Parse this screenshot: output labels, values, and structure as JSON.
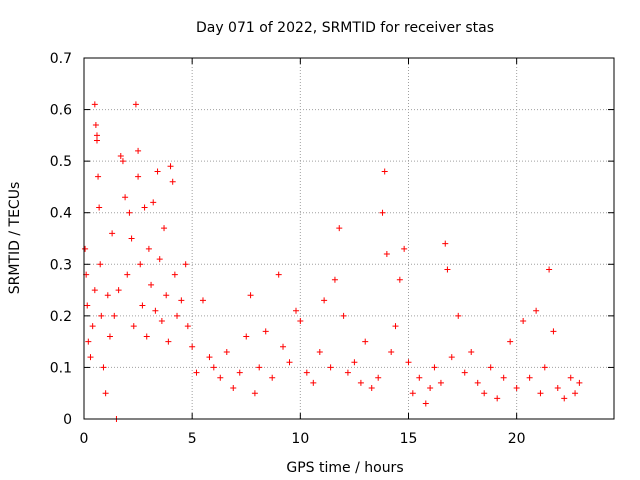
{
  "chart_data": {
    "type": "scatter",
    "title": "Day 071 of 2022, SRMTID for receiver stas",
    "xlabel": "GPS time / hours",
    "ylabel": "SRMTID / TECUs",
    "xlim": [
      0,
      24.5
    ],
    "ylim": [
      0,
      0.7
    ],
    "xticks": [
      0,
      5,
      10,
      15,
      20
    ],
    "yticks": [
      0,
      0.1,
      0.2,
      0.3,
      0.4,
      0.5,
      0.6,
      0.7
    ],
    "xtick_labels": [
      "0",
      "5",
      "10",
      "15",
      "20"
    ],
    "ytick_labels": [
      "0",
      "0.1",
      "0.2",
      "0.3",
      "0.4",
      "0.5",
      "0.6",
      "0.7"
    ],
    "grid": true,
    "marker": "plus",
    "color": "#ff0000",
    "series": [
      {
        "name": "SRMTID",
        "points": [
          [
            0.05,
            0.33
          ],
          [
            0.1,
            0.28
          ],
          [
            0.15,
            0.22
          ],
          [
            0.2,
            0.15
          ],
          [
            0.3,
            0.12
          ],
          [
            0.4,
            0.18
          ],
          [
            0.5,
            0.25
          ],
          [
            0.5,
            0.61
          ],
          [
            0.55,
            0.57
          ],
          [
            0.6,
            0.55
          ],
          [
            0.6,
            0.54
          ],
          [
            0.65,
            0.47
          ],
          [
            0.7,
            0.41
          ],
          [
            0.75,
            0.3
          ],
          [
            0.8,
            0.2
          ],
          [
            0.9,
            0.1
          ],
          [
            1.0,
            0.05
          ],
          [
            1.1,
            0.24
          ],
          [
            1.2,
            0.16
          ],
          [
            1.3,
            0.36
          ],
          [
            1.4,
            0.2
          ],
          [
            1.5,
            0.0
          ],
          [
            1.6,
            0.25
          ],
          [
            1.7,
            0.51
          ],
          [
            1.8,
            0.5
          ],
          [
            1.9,
            0.43
          ],
          [
            2.0,
            0.28
          ],
          [
            2.1,
            0.4
          ],
          [
            2.2,
            0.35
          ],
          [
            2.3,
            0.18
          ],
          [
            2.4,
            0.61
          ],
          [
            2.5,
            0.52
          ],
          [
            2.5,
            0.47
          ],
          [
            2.6,
            0.3
          ],
          [
            2.7,
            0.22
          ],
          [
            2.8,
            0.41
          ],
          [
            2.9,
            0.16
          ],
          [
            3.0,
            0.33
          ],
          [
            3.1,
            0.26
          ],
          [
            3.2,
            0.42
          ],
          [
            3.3,
            0.21
          ],
          [
            3.4,
            0.48
          ],
          [
            3.5,
            0.31
          ],
          [
            3.6,
            0.19
          ],
          [
            3.7,
            0.37
          ],
          [
            3.8,
            0.24
          ],
          [
            3.9,
            0.15
          ],
          [
            4.0,
            0.49
          ],
          [
            4.1,
            0.46
          ],
          [
            4.2,
            0.28
          ],
          [
            4.3,
            0.2
          ],
          [
            4.5,
            0.23
          ],
          [
            4.7,
            0.3
          ],
          [
            4.8,
            0.18
          ],
          [
            5.0,
            0.14
          ],
          [
            5.2,
            0.09
          ],
          [
            5.5,
            0.23
          ],
          [
            5.8,
            0.12
          ],
          [
            6.0,
            0.1
          ],
          [
            6.3,
            0.08
          ],
          [
            6.6,
            0.13
          ],
          [
            6.9,
            0.06
          ],
          [
            7.2,
            0.09
          ],
          [
            7.5,
            0.16
          ],
          [
            7.7,
            0.24
          ],
          [
            7.9,
            0.05
          ],
          [
            8.1,
            0.1
          ],
          [
            8.4,
            0.17
          ],
          [
            8.7,
            0.08
          ],
          [
            9.0,
            0.28
          ],
          [
            9.2,
            0.14
          ],
          [
            9.5,
            0.11
          ],
          [
            9.8,
            0.21
          ],
          [
            10.0,
            0.19
          ],
          [
            10.3,
            0.09
          ],
          [
            10.6,
            0.07
          ],
          [
            10.9,
            0.13
          ],
          [
            11.1,
            0.23
          ],
          [
            11.4,
            0.1
          ],
          [
            11.6,
            0.27
          ],
          [
            11.8,
            0.37
          ],
          [
            12.0,
            0.2
          ],
          [
            12.2,
            0.09
          ],
          [
            12.5,
            0.11
          ],
          [
            12.8,
            0.07
          ],
          [
            13.0,
            0.15
          ],
          [
            13.3,
            0.06
          ],
          [
            13.6,
            0.08
          ],
          [
            13.8,
            0.4
          ],
          [
            13.9,
            0.48
          ],
          [
            14.0,
            0.32
          ],
          [
            14.2,
            0.13
          ],
          [
            14.4,
            0.18
          ],
          [
            14.6,
            0.27
          ],
          [
            14.8,
            0.33
          ],
          [
            15.0,
            0.11
          ],
          [
            15.2,
            0.05
          ],
          [
            15.5,
            0.08
          ],
          [
            15.8,
            0.03
          ],
          [
            16.0,
            0.06
          ],
          [
            16.2,
            0.1
          ],
          [
            16.5,
            0.07
          ],
          [
            16.7,
            0.34
          ],
          [
            16.8,
            0.29
          ],
          [
            17.0,
            0.12
          ],
          [
            17.3,
            0.2
          ],
          [
            17.6,
            0.09
          ],
          [
            17.9,
            0.13
          ],
          [
            18.2,
            0.07
          ],
          [
            18.5,
            0.05
          ],
          [
            18.8,
            0.1
          ],
          [
            19.1,
            0.04
          ],
          [
            19.4,
            0.08
          ],
          [
            19.7,
            0.15
          ],
          [
            20.0,
            0.06
          ],
          [
            20.3,
            0.19
          ],
          [
            20.6,
            0.08
          ],
          [
            20.9,
            0.21
          ],
          [
            21.1,
            0.05
          ],
          [
            21.3,
            0.1
          ],
          [
            21.5,
            0.29
          ],
          [
            21.7,
            0.17
          ],
          [
            21.9,
            0.06
          ],
          [
            22.2,
            0.04
          ],
          [
            22.5,
            0.08
          ],
          [
            22.7,
            0.05
          ],
          [
            22.9,
            0.07
          ]
        ]
      }
    ]
  }
}
